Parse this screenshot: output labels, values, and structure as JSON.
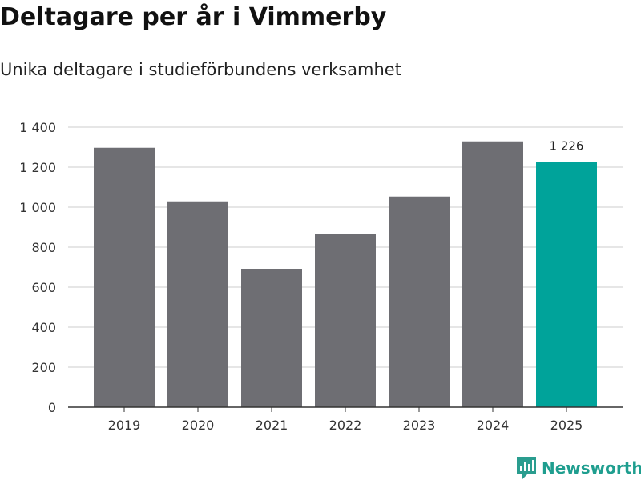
{
  "title": "Deltagare per år i Vimmerby",
  "subtitle": "Unika deltagare i studieförbundens verksamhet",
  "brand": "Newsworthy",
  "colors": {
    "bar": "#6e6e73",
    "highlight": "#00a39a",
    "grid": "#dddddd",
    "axis": "#333333",
    "brand": "#1f9e8f"
  },
  "chart_data": {
    "type": "bar",
    "categories": [
      "2019",
      "2020",
      "2021",
      "2022",
      "2023",
      "2024",
      "2025"
    ],
    "values": [
      1297,
      1029,
      692,
      865,
      1053,
      1329,
      1226
    ],
    "highlight_index": 6,
    "data_labels": [
      {
        "index": 6,
        "text": "1 226"
      }
    ],
    "ylim": [
      0,
      1400
    ],
    "yticks": [
      0,
      200,
      400,
      600,
      800,
      1000,
      1200,
      1400
    ],
    "ytick_labels": [
      "0",
      "200",
      "400",
      "600",
      "800",
      "1 000",
      "1 200",
      "1 400"
    ],
    "grid": true,
    "legend": "none"
  }
}
